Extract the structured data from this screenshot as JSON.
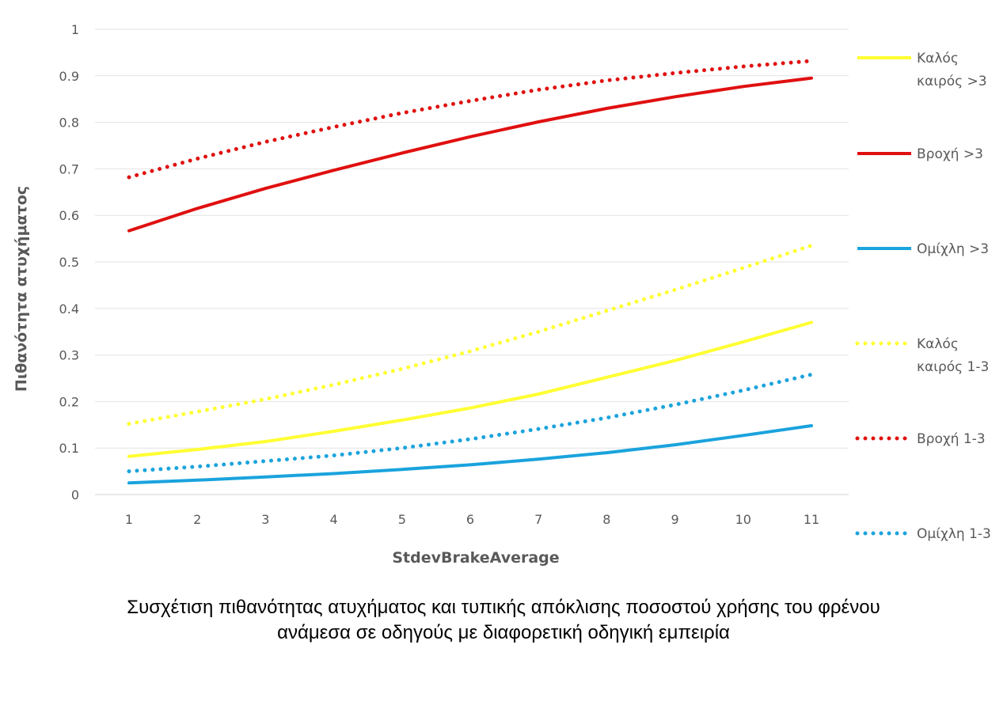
{
  "chart_data": {
    "type": "line",
    "xlabel": "StdevBrakeAverage",
    "ylabel": "Πιθανότητα ατυχήματος",
    "x": [
      1,
      2,
      3,
      4,
      5,
      6,
      7,
      8,
      9,
      10,
      11
    ],
    "ylim": [
      0,
      1
    ],
    "yticks": [
      "0",
      "0.1",
      "0.2",
      "0.3",
      "0.4",
      "0.5",
      "0.6",
      "0.7",
      "0.8",
      "0.9",
      "1"
    ],
    "grid": true,
    "legend_position": "right",
    "series": [
      {
        "name": "Καλός καιρός >3",
        "name_lines": [
          "Καλός",
          "καιρός >3"
        ],
        "color": "#ffff33",
        "style": "solid",
        "values": [
          0.082,
          0.097,
          0.114,
          0.136,
          0.16,
          0.186,
          0.216,
          0.252,
          0.288,
          0.328,
          0.37
        ]
      },
      {
        "name": "Βροχή >3",
        "name_lines": [
          "Βροχή >3"
        ],
        "color": "#e01010",
        "style": "solid",
        "values": [
          0.567,
          0.615,
          0.658,
          0.697,
          0.734,
          0.769,
          0.801,
          0.83,
          0.855,
          0.877,
          0.895
        ]
      },
      {
        "name": "Ομίχλη >3",
        "name_lines": [
          "Ομίχλη >3"
        ],
        "color": "#1aa3dd",
        "style": "solid",
        "values": [
          0.025,
          0.031,
          0.038,
          0.045,
          0.054,
          0.064,
          0.076,
          0.09,
          0.107,
          0.127,
          0.148
        ]
      },
      {
        "name": "Καλός καιρός 1-3",
        "name_lines": [
          "Καλός",
          "καιρός 1-3"
        ],
        "color": "#ffff33",
        "style": "dotted",
        "values": [
          0.152,
          0.178,
          0.205,
          0.236,
          0.27,
          0.308,
          0.35,
          0.395,
          0.44,
          0.487,
          0.535
        ]
      },
      {
        "name": "Βροχή 1-3",
        "name_lines": [
          "Βροχή 1-3"
        ],
        "color": "#e01010",
        "style": "dotted",
        "values": [
          0.682,
          0.722,
          0.758,
          0.79,
          0.82,
          0.846,
          0.87,
          0.89,
          0.906,
          0.92,
          0.932
        ]
      },
      {
        "name": "Ομίχλη 1-3",
        "name_lines": [
          "Ομίχλη 1-3"
        ],
        "color": "#1aa3dd",
        "style": "dotted",
        "values": [
          0.05,
          0.06,
          0.072,
          0.084,
          0.1,
          0.119,
          0.141,
          0.165,
          0.193,
          0.224,
          0.258
        ]
      }
    ]
  },
  "caption": {
    "line1": "Συσχέτιση πιθανότητας ατυχήματος και τυπικής απόκλισης ποσοστού χρήσης του φρένου",
    "line2": "ανάμεσα σε οδηγούς με διαφορετική οδηγική εμπειρία"
  }
}
